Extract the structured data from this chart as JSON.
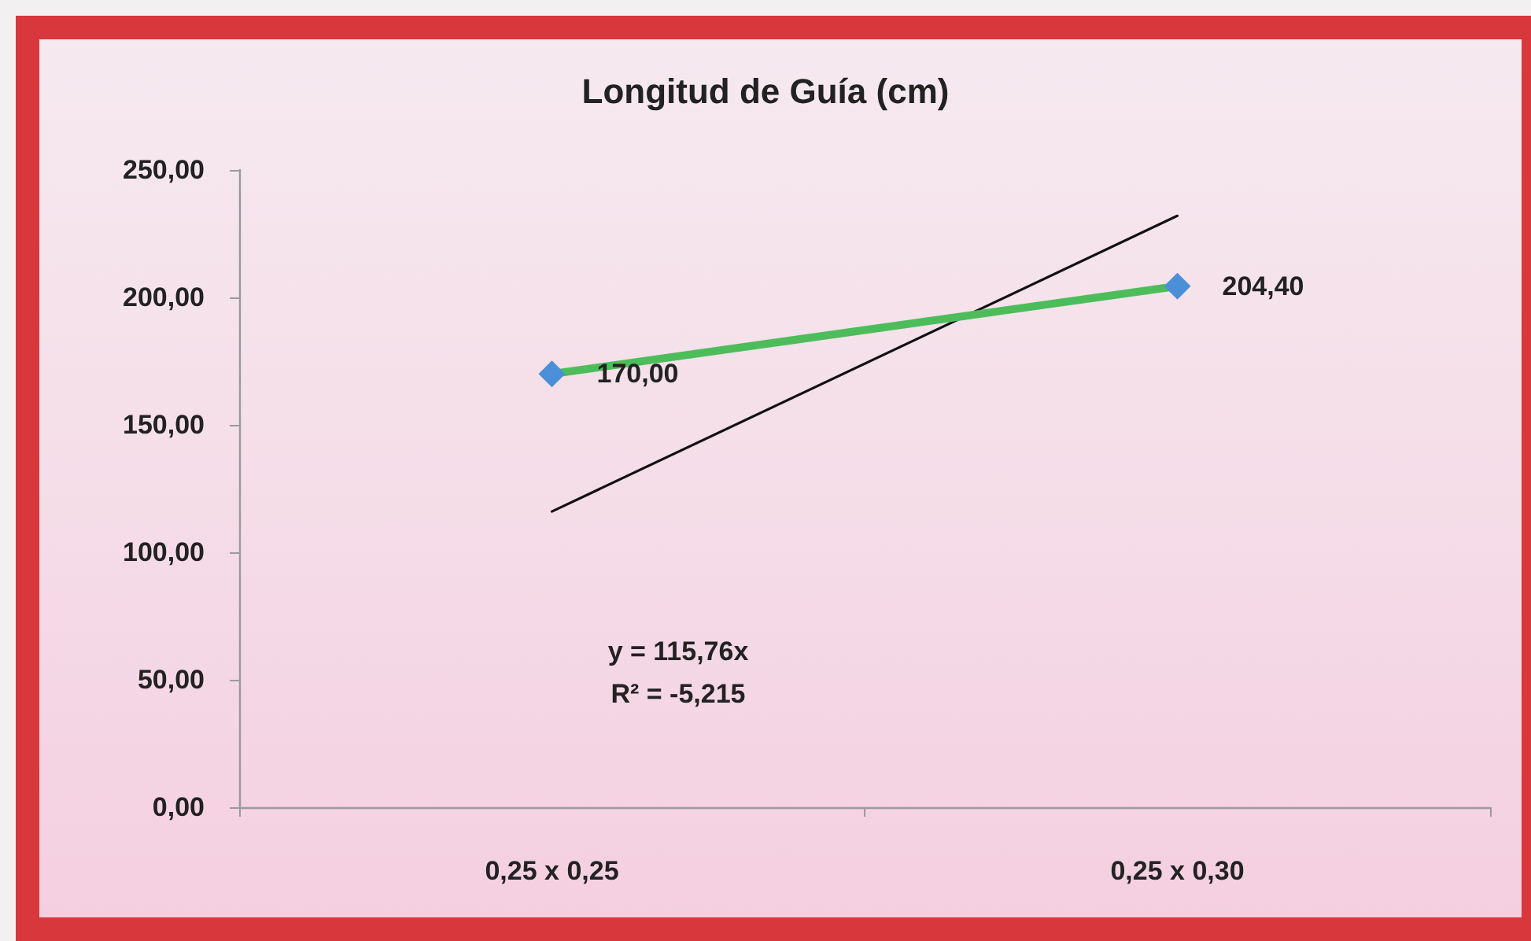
{
  "chart_data": {
    "type": "line",
    "title": "Longitud de Guía (cm)",
    "categories": [
      "0,25 x 0,25",
      "0,25 x 0,30"
    ],
    "series": [
      {
        "color": "#4cbd5a",
        "values": [
          170.0,
          204.4
        ],
        "value_labels": [
          "170,00",
          "204,40"
        ],
        "marker": "diamond",
        "colors": [
          "#4a8fd8",
          "#4a8fd8"
        ]
      },
      {
        "color": "#111111",
        "values": [
          116,
          232
        ],
        "marker": "none"
      }
    ],
    "ylim": [
      0,
      250
    ],
    "yticks": [
      {
        "value": 0,
        "label": "0,00"
      },
      {
        "value": 50,
        "label": "50,00"
      },
      {
        "value": 100,
        "label": "100,00"
      },
      {
        "value": 150,
        "label": "150,00"
      },
      {
        "value": 200,
        "label": "200,00"
      },
      {
        "value": 250,
        "label": "250,00"
      }
    ],
    "annotations": [
      "y = 115,76x",
      "R² = -5,215"
    ],
    "grid": false,
    "line_style": "solid"
  }
}
